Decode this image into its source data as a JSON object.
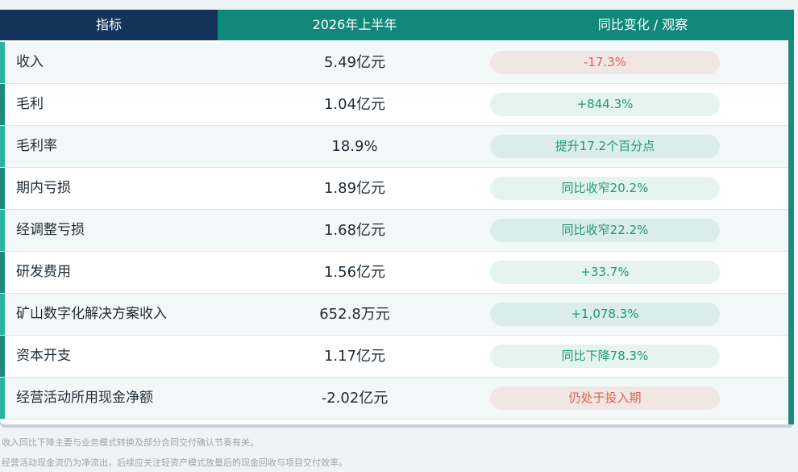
{
  "table": {
    "header": [
      "指标",
      "2026年上半年",
      "同比变化 / 观察"
    ],
    "rows": [
      [
        "收入",
        "5.49亿元",
        "-17.3%"
      ],
      [
        "毛利",
        "1.04亿元",
        "+844.3%"
      ],
      [
        "毛利率",
        "18.9%",
        "提升17.2个百分点"
      ],
      [
        "期内亏损",
        "1.89亿元",
        "同比收窄20.2%"
      ],
      [
        "经调整亏损",
        "1.68亿元",
        "同比收窄22.2%"
      ],
      [
        "研发费用",
        "1.56亿元",
        "+33.7%"
      ],
      [
        "矿山数字化解决方案收入",
        "652.8万元",
        "+1,078.3%"
      ],
      [
        "资本开支",
        "1.17亿元",
        "同比下降78.3%"
      ],
      [
        "经营活动所用现金净额",
        "-2.02亿元",
        "仍处于投入期"
      ]
    ],
    "change_colors": [
      "#e2604e",
      "#1f9a72",
      "#1f9a72",
      "#1f9a72",
      "#1f9a72",
      "#1f9a72",
      "#1f9a72",
      "#1f9a72",
      "#e2604e"
    ]
  },
  "notes": [
    "收入同比下降主要与业务模式转换及部分合同交付确认节奏有关。",
    "经营活动现金流仍为净流出，后续应关注轻资产模式放量后的现金回收与项目交付效率。"
  ]
}
